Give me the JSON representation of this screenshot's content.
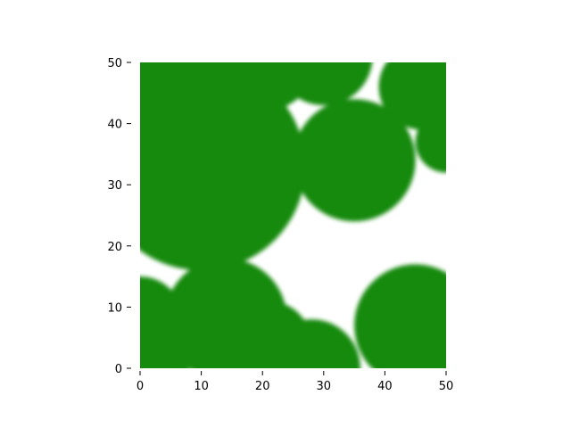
{
  "chart_data": {
    "type": "heatmap",
    "title": "",
    "xlabel": "",
    "ylabel": "",
    "xlim": [
      0,
      50
    ],
    "ylim": [
      0,
      50
    ],
    "x_ticks": [
      0,
      10,
      20,
      30,
      40,
      50
    ],
    "y_ticks": [
      0,
      10,
      20,
      30,
      40,
      50
    ],
    "x_tick_labels": [
      "0",
      "10",
      "20",
      "30",
      "40",
      "50"
    ],
    "y_tick_labels": [
      "0",
      "10",
      "20",
      "30",
      "40",
      "50"
    ],
    "grid": false,
    "fill_color": "#178A11",
    "background_color": "#FFFFFF",
    "regions": [
      {
        "shape": "disc",
        "cx": 10,
        "cy": 33,
        "r": 17
      },
      {
        "shape": "disc",
        "cx": 6,
        "cy": 42,
        "r": 12
      },
      {
        "shape": "disc",
        "cx": 20,
        "cy": 51,
        "r": 9
      },
      {
        "shape": "disc",
        "cx": 30,
        "cy": 51,
        "r": 8
      },
      {
        "shape": "disc",
        "cx": 35,
        "cy": 34,
        "r": 10
      },
      {
        "shape": "disc",
        "cx": 46,
        "cy": 46,
        "r": 7
      },
      {
        "shape": "disc",
        "cx": 50,
        "cy": 37,
        "r": 5
      },
      {
        "shape": "disc",
        "cx": 14,
        "cy": 8,
        "r": 10
      },
      {
        "shape": "disc",
        "cx": 21,
        "cy": 4,
        "r": 7
      },
      {
        "shape": "disc",
        "cx": 28,
        "cy": 0,
        "r": 8
      },
      {
        "shape": "disc",
        "cx": 0,
        "cy": 8,
        "r": 7
      },
      {
        "shape": "disc",
        "cx": 3,
        "cy": 0,
        "r": 5
      },
      {
        "shape": "disc",
        "cx": 45,
        "cy": 7,
        "r": 10
      },
      {
        "shape": "disc",
        "cx": 50,
        "cy": 0,
        "r": 8
      }
    ]
  }
}
